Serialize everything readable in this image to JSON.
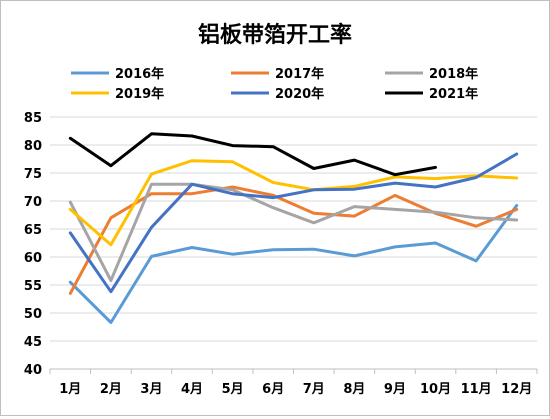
{
  "chart_data": {
    "type": "line",
    "title": "铝板带箔开工率",
    "xlabel": "",
    "ylabel": "",
    "categories": [
      "1月",
      "2月",
      "3月",
      "4月",
      "5月",
      "6月",
      "7月",
      "8月",
      "9月",
      "10月",
      "11月",
      "12月"
    ],
    "ylim": [
      40,
      85
    ],
    "yticks": [
      40,
      45,
      50,
      55,
      60,
      65,
      70,
      75,
      80,
      85
    ],
    "grid": "horizontal",
    "legend_position": "top",
    "series": [
      {
        "name": "2016年",
        "color": "#5b9bd5",
        "values": [
          55.5,
          48.3,
          60.1,
          61.7,
          60.5,
          61.3,
          61.4,
          60.2,
          61.8,
          62.5,
          59.3,
          69.2
        ]
      },
      {
        "name": "2017年",
        "color": "#ed7d31",
        "values": [
          53.5,
          67.0,
          71.3,
          71.3,
          72.5,
          71.0,
          67.8,
          67.3,
          71.0,
          67.8,
          65.5,
          68.5
        ]
      },
      {
        "name": "2018年",
        "color": "#a5a5a5",
        "values": [
          69.8,
          55.8,
          73.0,
          73.0,
          72.0,
          68.8,
          66.1,
          69.0,
          68.5,
          68.0,
          67.0,
          66.6
        ]
      },
      {
        "name": "2019年",
        "color": "#ffc000",
        "values": [
          68.5,
          62.2,
          74.8,
          77.2,
          77.0,
          73.3,
          72.0,
          72.6,
          74.3,
          74.0,
          74.5,
          74.1
        ]
      },
      {
        "name": "2020年",
        "color": "#4472c4",
        "values": [
          64.3,
          53.8,
          65.3,
          73.0,
          71.3,
          70.6,
          72.0,
          72.1,
          73.2,
          72.5,
          74.2,
          78.4
        ]
      },
      {
        "name": "2021年",
        "color": "#000000",
        "values": [
          81.2,
          76.3,
          82.0,
          81.6,
          79.9,
          79.7,
          75.8,
          77.3,
          74.7,
          76.0,
          null,
          null
        ]
      }
    ]
  }
}
